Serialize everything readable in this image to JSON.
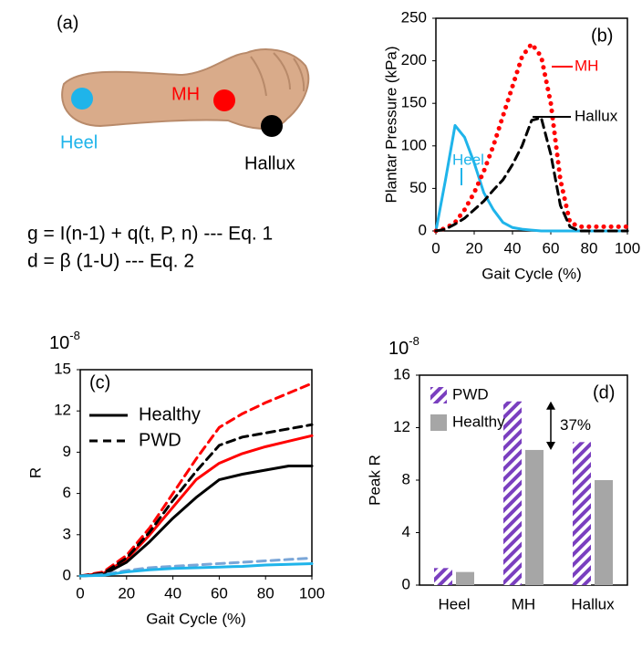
{
  "panel_a": {
    "tag": "(a)",
    "heel": "Heel",
    "mh": "MH",
    "hallux": "Hallux",
    "equations": [
      "g = I(n-1) + q(t, P, n) --- Eq. 1",
      "d = β (1-U) --- Eq. 2"
    ]
  },
  "chart_data": [
    {
      "type": "line",
      "tag": "(b)",
      "x_label": "Gait Cycle (%)",
      "y_label": "Plantar Pressure (kPa)",
      "x": [
        0,
        5,
        10,
        15,
        20,
        25,
        30,
        35,
        40,
        45,
        50,
        55,
        60,
        65,
        70,
        75,
        80,
        85,
        90,
        95,
        100
      ],
      "series": [
        {
          "name": "Heel",
          "color": "#1fb4ea",
          "dash": "solid",
          "values": [
            0,
            60,
            124,
            110,
            80,
            45,
            25,
            10,
            4,
            2,
            1,
            0,
            0,
            0,
            0,
            0,
            0,
            0,
            0,
            0,
            0
          ]
        },
        {
          "name": "MH",
          "color": "#ff0000",
          "dash": "dotted",
          "values": [
            0,
            3,
            10,
            25,
            45,
            70,
            100,
            135,
            170,
            205,
            220,
            205,
            150,
            60,
            10,
            5,
            5,
            5,
            5,
            5,
            5
          ]
        },
        {
          "name": "Hallux",
          "color": "#000000",
          "dash": "dashed",
          "values": [
            0,
            2,
            8,
            15,
            25,
            35,
            48,
            60,
            78,
            100,
            130,
            133,
            90,
            30,
            5,
            0,
            0,
            0,
            0,
            0,
            0
          ]
        }
      ],
      "xlim": [
        0,
        100
      ],
      "xticks": [
        0,
        20,
        40,
        60,
        80,
        100
      ],
      "ylim": [
        0,
        250
      ],
      "yticks": [
        0,
        50,
        100,
        150,
        200,
        250
      ],
      "grid": false
    },
    {
      "type": "line",
      "tag": "(c)",
      "x_label": "Gait Cycle (%)",
      "y_label": "R",
      "y_scale_base": "10",
      "y_scale_exponent": "-8",
      "x": [
        0,
        10,
        20,
        30,
        40,
        50,
        60,
        70,
        80,
        90,
        100
      ],
      "series": [
        {
          "color": "#ff0000",
          "dash": "dashed",
          "values": [
            0,
            0.3,
            1.5,
            3.5,
            6,
            8.5,
            10.8,
            11.8,
            12.6,
            13.3,
            14
          ]
        },
        {
          "color": "#ff0000",
          "dash": "solid",
          "values": [
            0,
            0.2,
            1.2,
            3,
            5,
            7,
            8.2,
            8.9,
            9.4,
            9.8,
            10.2
          ]
        },
        {
          "color": "#000000",
          "dash": "dashed",
          "values": [
            0,
            0.2,
            1.3,
            3.2,
            5.5,
            7.6,
            9.5,
            10.1,
            10.4,
            10.7,
            11
          ]
        },
        {
          "color": "#000000",
          "dash": "solid",
          "values": [
            0,
            0.1,
            1,
            2.5,
            4.2,
            5.7,
            7,
            7.4,
            7.7,
            8,
            8
          ]
        },
        {
          "color": "#7aa6d8",
          "dash": "dashed",
          "values": [
            0,
            0.1,
            0.4,
            0.6,
            0.7,
            0.8,
            0.9,
            1,
            1.1,
            1.2,
            1.3
          ]
        },
        {
          "color": "#1fb4ea",
          "dash": "solid",
          "values": [
            0,
            0.05,
            0.3,
            0.45,
            0.55,
            0.6,
            0.65,
            0.7,
            0.8,
            0.85,
            0.9
          ]
        }
      ],
      "legend": [
        {
          "label": "Healthy",
          "dash": "solid"
        },
        {
          "label": "PWD",
          "dash": "dashed"
        }
      ],
      "xlim": [
        0,
        100
      ],
      "xticks": [
        0,
        20,
        40,
        60,
        80,
        100
      ],
      "ylim": [
        0,
        15
      ],
      "yticks": [
        0,
        3,
        6,
        9,
        12,
        15
      ],
      "grid": false
    },
    {
      "type": "bar",
      "tag": "(d)",
      "y_label": "Peak R",
      "y_scale_base": "10",
      "y_scale_exponent": "-8",
      "categories": [
        "Heel",
        "MH",
        "Hallux"
      ],
      "series": [
        {
          "name": "PWD",
          "color": "#7a3fbf",
          "hatch": true,
          "values": [
            1.3,
            14,
            10.9
          ]
        },
        {
          "name": "Healthy",
          "color": "#a6a6a6",
          "hatch": false,
          "values": [
            1,
            10.3,
            8
          ]
        }
      ],
      "annotation": "37%",
      "ylim": [
        0,
        16
      ],
      "yticks": [
        0,
        4,
        8,
        12,
        16
      ],
      "grid": false
    }
  ]
}
